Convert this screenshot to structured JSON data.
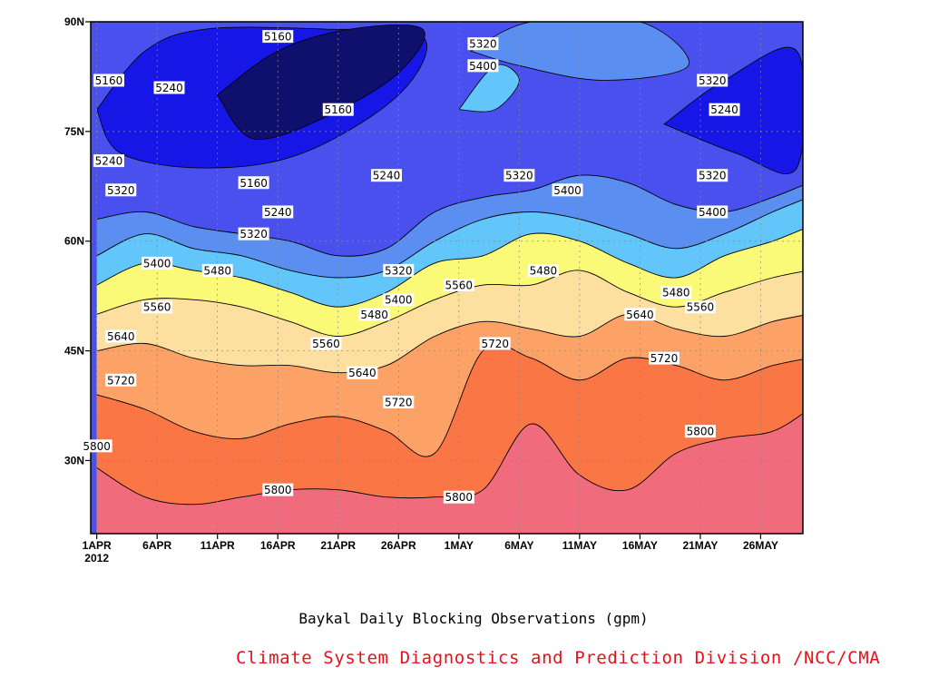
{
  "chart_data": {
    "type": "heatmap",
    "subtype": "filled contour (time–latitude section)",
    "title": "Baykal Daily Blocking Observations (gpm)",
    "credit": "Climate System Diagnostics and Prediction Division /NCC/CMA",
    "x_ticks": [
      "1APR",
      "6APR",
      "11APR",
      "16APR",
      "21APR",
      "26APR",
      "1MAY",
      "6MAY",
      "11MAY",
      "16MAY",
      "21MAY",
      "26MAY"
    ],
    "x_sublabel": "2012",
    "y_ticks": [
      "30N",
      "45N",
      "60N",
      "75N",
      "90N"
    ],
    "y_range_deg": [
      20,
      90
    ],
    "x_range_day_of_year": [
      90.5,
      149.5
    ],
    "grid": true,
    "contour_levels": [
      5160,
      5240,
      5320,
      5400,
      5480,
      5560,
      5640,
      5720,
      5800
    ],
    "fill_colors": [
      "#0f0f6e",
      "#1616e6",
      "#4a50ee",
      "#5a8ef0",
      "#62c6fa",
      "#fafa78",
      "#fde0a0",
      "#fca266",
      "#fa7645",
      "#f06b7c"
    ],
    "contour_lines_latitude": {
      "x_day": [
        91,
        95,
        99,
        103,
        107,
        111,
        115,
        119,
        123,
        127,
        131,
        135,
        139,
        143,
        147,
        150
      ],
      "5800": [
        29,
        25,
        24,
        25,
        26,
        26,
        25,
        25,
        26,
        35,
        28,
        26,
        31,
        33,
        34,
        37
      ],
      "5720": [
        39,
        37,
        34,
        33,
        35,
        36,
        34,
        31,
        45,
        44,
        41,
        44,
        43,
        41,
        43,
        44
      ],
      "5640": [
        45,
        46,
        44,
        43,
        43,
        42,
        43,
        47,
        49,
        48,
        47,
        50,
        48,
        47,
        49,
        50
      ],
      "5560": [
        50,
        52,
        52,
        51,
        49,
        47,
        49,
        52,
        54,
        54,
        56,
        53,
        51,
        53,
        55,
        56
      ],
      "5480": [
        54,
        57,
        56,
        55,
        53,
        51,
        53,
        57,
        58,
        61,
        60,
        57,
        55,
        58,
        60,
        62
      ],
      "5400": [
        58,
        61,
        59,
        58,
        56,
        55,
        56,
        60,
        63,
        64,
        63,
        61,
        59,
        61,
        64,
        66
      ],
      "5320": [
        63,
        64,
        62,
        61,
        60,
        58,
        59,
        64,
        66,
        67,
        69,
        68,
        65,
        64,
        66,
        68
      ]
    },
    "contour_labels": [
      {
        "text": "5160",
        "x_day": 92,
        "lat": 82
      },
      {
        "text": "5240",
        "x_day": 97,
        "lat": 81
      },
      {
        "text": "5160",
        "x_day": 106,
        "lat": 88
      },
      {
        "text": "5320",
        "x_day": 123,
        "lat": 87
      },
      {
        "text": "5400",
        "x_day": 123,
        "lat": 84
      },
      {
        "text": "5160",
        "x_day": 111,
        "lat": 78
      },
      {
        "text": "5320",
        "x_day": 142,
        "lat": 82
      },
      {
        "text": "5240",
        "x_day": 143,
        "lat": 78
      },
      {
        "text": "5240",
        "x_day": 92,
        "lat": 71
      },
      {
        "text": "5160",
        "x_day": 104,
        "lat": 68
      },
      {
        "text": "5240",
        "x_day": 115,
        "lat": 69
      },
      {
        "text": "5320",
        "x_day": 93,
        "lat": 67
      },
      {
        "text": "5320",
        "x_day": 126,
        "lat": 69
      },
      {
        "text": "5400",
        "x_day": 130,
        "lat": 67
      },
      {
        "text": "5320",
        "x_day": 142,
        "lat": 69
      },
      {
        "text": "5240",
        "x_day": 106,
        "lat": 64
      },
      {
        "text": "5320",
        "x_day": 104,
        "lat": 61
      },
      {
        "text": "5400",
        "x_day": 142,
        "lat": 64
      },
      {
        "text": "5400",
        "x_day": 96,
        "lat": 57
      },
      {
        "text": "5480",
        "x_day": 101,
        "lat": 56
      },
      {
        "text": "5320",
        "x_day": 116,
        "lat": 56
      },
      {
        "text": "5560",
        "x_day": 121,
        "lat": 54
      },
      {
        "text": "5480",
        "x_day": 128,
        "lat": 56
      },
      {
        "text": "5480",
        "x_day": 139,
        "lat": 53
      },
      {
        "text": "5400",
        "x_day": 116,
        "lat": 52
      },
      {
        "text": "5480",
        "x_day": 114,
        "lat": 50
      },
      {
        "text": "5560",
        "x_day": 96,
        "lat": 51
      },
      {
        "text": "5640",
        "x_day": 136,
        "lat": 50
      },
      {
        "text": "5560",
        "x_day": 141,
        "lat": 51
      },
      {
        "text": "5640",
        "x_day": 93,
        "lat": 47
      },
      {
        "text": "5560",
        "x_day": 110,
        "lat": 46
      },
      {
        "text": "5720",
        "x_day": 124,
        "lat": 46
      },
      {
        "text": "5640",
        "x_day": 113,
        "lat": 42
      },
      {
        "text": "5720",
        "x_day": 138,
        "lat": 44
      },
      {
        "text": "5720",
        "x_day": 93,
        "lat": 41
      },
      {
        "text": "5720",
        "x_day": 116,
        "lat": 38
      },
      {
        "text": "5800",
        "x_day": 91,
        "lat": 32
      },
      {
        "text": "5800",
        "x_day": 141,
        "lat": 34
      },
      {
        "text": "5800",
        "x_day": 106,
        "lat": 26
      },
      {
        "text": "5800",
        "x_day": 121,
        "lat": 25
      }
    ],
    "colors": {
      "title": "#000000",
      "credit": "#e8101a",
      "contour_line": "#000000",
      "grid": "#888888"
    }
  }
}
